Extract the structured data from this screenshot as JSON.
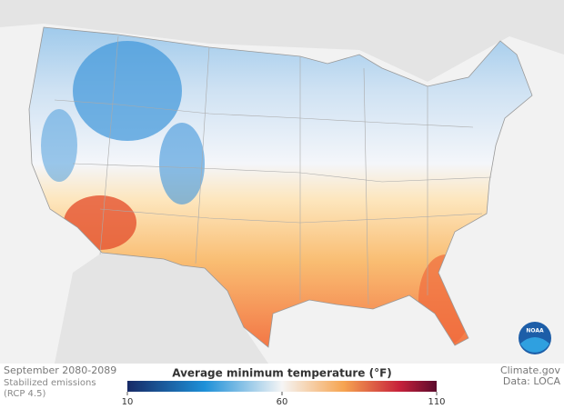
{
  "caption": {
    "period": "September 2080-2089",
    "scenario": "Stabilized emissions",
    "scenario_code": "(RCP 4.5)"
  },
  "credits": {
    "source": "Climate.gov",
    "data": "Data: LOCA",
    "logo": "NOAA"
  },
  "legend": {
    "title": "Average minimum temperature (°F)",
    "range": [
      10,
      110
    ],
    "ticks": [
      10,
      60,
      110
    ]
  }
}
